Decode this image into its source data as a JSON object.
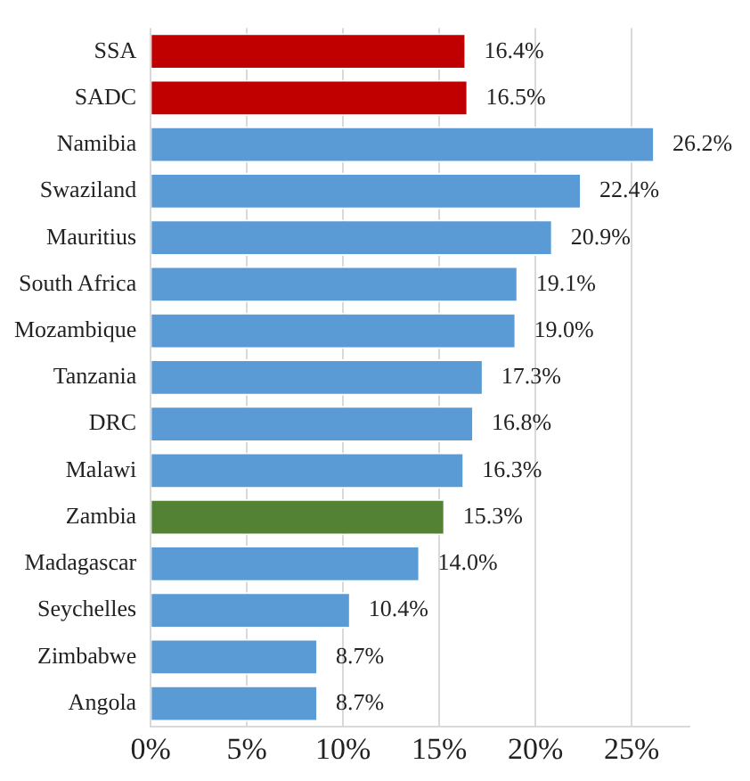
{
  "chart_data": {
    "type": "bar",
    "orientation": "horizontal",
    "categories": [
      "SSA",
      "SADC",
      "Namibia",
      "Swaziland",
      "Mauritius",
      "South Africa",
      "Mozambique",
      "Tanzania",
      "DRC",
      "Malawi",
      "Zambia",
      "Madagascar",
      "Seychelles",
      "Zimbabwe",
      "Angola"
    ],
    "values": [
      16.4,
      16.5,
      26.2,
      22.4,
      20.9,
      19.1,
      19.0,
      17.3,
      16.8,
      16.3,
      15.3,
      14.0,
      10.4,
      8.7,
      8.7
    ],
    "value_labels": [
      "16.4%",
      "16.5%",
      "26.2%",
      "22.4%",
      "20.9%",
      "19.1%",
      "19.0%",
      "17.3%",
      "16.8%",
      "16.3%",
      "15.3%",
      "14.0%",
      "10.4%",
      "8.7%",
      "8.7%"
    ],
    "colors": [
      "#c00000",
      "#c00000",
      "#5b9bd5",
      "#5b9bd5",
      "#5b9bd5",
      "#5b9bd5",
      "#5b9bd5",
      "#5b9bd5",
      "#5b9bd5",
      "#5b9bd5",
      "#548235",
      "#5b9bd5",
      "#5b9bd5",
      "#5b9bd5",
      "#5b9bd5"
    ],
    "xlim": [
      0,
      28
    ],
    "xticks": [
      {
        "value": 0,
        "label": "0%"
      },
      {
        "value": 5,
        "label": "5%"
      },
      {
        "value": 10,
        "label": "10%"
      },
      {
        "value": 15,
        "label": "15%"
      },
      {
        "value": 20,
        "label": "20%"
      },
      {
        "value": 25,
        "label": "25%"
      }
    ],
    "grid": "x",
    "legend": false
  }
}
